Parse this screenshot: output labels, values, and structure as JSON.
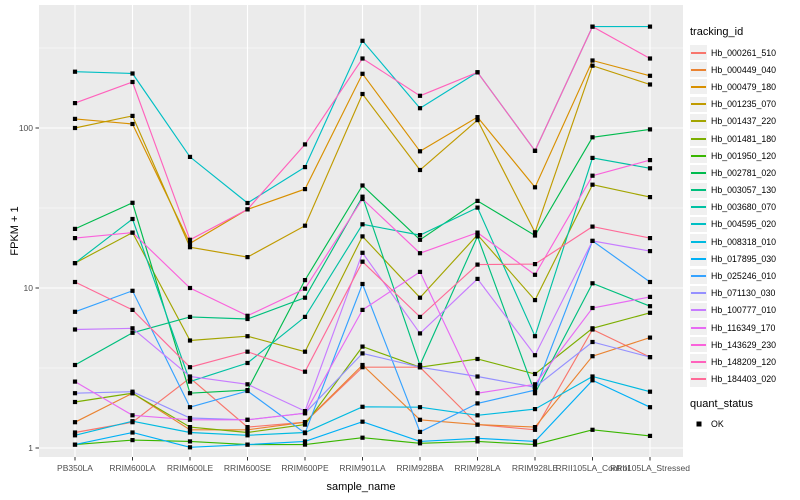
{
  "y_axis": {
    "label": "FPKM + 1",
    "tick_labels": [
      "100",
      "10",
      "1"
    ]
  },
  "x_axis": {
    "label": "sample_name"
  },
  "legend": {
    "tracking_title": "tracking_id",
    "quant_title": "quant_status",
    "quant_ok_label": "OK"
  },
  "chart_data": {
    "type": "line",
    "y_scale": "log10",
    "ylabel": "FPKM + 1",
    "xlabel": "sample_name",
    "y_ticks": [
      1,
      10,
      100
    ],
    "y_minor_ticks": [
      3.162,
      31.62,
      316.2
    ],
    "grid": "on",
    "legend_position": "right",
    "panel_background": "#EBEBEB",
    "grid_color": "#FFFFFF",
    "point_color": "#000000",
    "categories": [
      "PB350LA",
      "RRIM600LA",
      "RRIM600LE",
      "RRIM600SE",
      "RRIM600PE",
      "RRIM901LA",
      "RRIM928BA",
      "RRIM928LA",
      "RRIM928LE",
      "RRII105LA_Control",
      "RRII105LA_Stressed"
    ],
    "series": [
      {
        "name": "Hb_000261_510",
        "color": "#F8766D",
        "values": [
          1.25,
          1.45,
          2.74,
          1.35,
          1.45,
          3.2,
          3.2,
          1.4,
          1.3,
          5.5,
          3.7
        ]
      },
      {
        "name": "Hb_000449_040",
        "color": "#EA8331",
        "values": [
          1.45,
          2.2,
          1.3,
          1.3,
          1.45,
          3.3,
          1.5,
          1.4,
          1.35,
          3.75,
          4.9
        ]
      },
      {
        "name": "Hb_000479_180",
        "color": "#D89000",
        "values": [
          114,
          106,
          19,
          31,
          41.5,
          218,
          71.5,
          117,
          42.6,
          264,
          212
        ]
      },
      {
        "name": "Hb_001235_070",
        "color": "#C09B00",
        "values": [
          100,
          119,
          18,
          15.6,
          24.5,
          163,
          54.6,
          112,
          22.3,
          245,
          187
        ]
      },
      {
        "name": "Hb_001437_220",
        "color": "#A3A500",
        "values": [
          14.3,
          22.2,
          4.7,
          5.0,
          4.0,
          21,
          8.7,
          21.5,
          8.4,
          44.2,
          37
        ]
      },
      {
        "name": "Hb_001481_180",
        "color": "#7CAE00",
        "values": [
          1.94,
          2.2,
          1.35,
          1.25,
          1.4,
          4.3,
          3.2,
          3.6,
          2.9,
          5.6,
          7.0
        ]
      },
      {
        "name": "Hb_001950_120",
        "color": "#39B600",
        "values": [
          1.05,
          1.12,
          1.1,
          1.05,
          1.05,
          1.16,
          1.07,
          1.1,
          1.05,
          1.3,
          1.19
        ]
      },
      {
        "name": "Hb_002781_020",
        "color": "#00BB4E",
        "values": [
          23.4,
          34.1,
          2.2,
          2.3,
          11.2,
          43.7,
          20,
          35,
          21.3,
          87.5,
          98
        ]
      },
      {
        "name": "Hb_003057_130",
        "color": "#00BF7D",
        "values": [
          3.3,
          5.25,
          6.6,
          6.4,
          8.7,
          37.2,
          3.3,
          21,
          2.2,
          10.7,
          7.7
        ]
      },
      {
        "name": "Hb_003680_070",
        "color": "#00C1A3",
        "values": [
          14.3,
          27,
          2.6,
          3.4,
          6.6,
          25,
          21.4,
          31.8,
          5.0,
          65,
          56
        ]
      },
      {
        "name": "Hb_004595_020",
        "color": "#00BFC4",
        "values": [
          225,
          219,
          66,
          34,
          57,
          351,
          133,
          223,
          72,
          430,
          430
        ]
      },
      {
        "name": "Hb_008318_010",
        "color": "#00BAE0",
        "values": [
          1.2,
          1.47,
          1.25,
          1.2,
          1.25,
          1.81,
          1.8,
          1.6,
          1.75,
          2.8,
          2.25
        ]
      },
      {
        "name": "Hb_017895_030",
        "color": "#00B0F6",
        "values": [
          1.05,
          1.25,
          1.01,
          1.05,
          1.1,
          1.46,
          1.1,
          1.15,
          1.1,
          2.65,
          1.8
        ]
      },
      {
        "name": "Hb_025246_010",
        "color": "#35A2FF",
        "values": [
          7.1,
          9.6,
          1.8,
          2.27,
          1.24,
          10.6,
          1.26,
          1.9,
          2.3,
          19.7,
          10.9
        ]
      },
      {
        "name": "Hb_071130_030",
        "color": "#9590FF",
        "values": [
          2.2,
          2.25,
          1.54,
          1.5,
          1.65,
          3.9,
          3.2,
          2.8,
          2.4,
          4.6,
          3.7
        ]
      },
      {
        "name": "Hb_100777_010",
        "color": "#C77CFF",
        "values": [
          5.5,
          5.6,
          2.8,
          2.5,
          1.7,
          16.6,
          5.2,
          11.4,
          3.8,
          19.7,
          17
        ]
      },
      {
        "name": "Hb_116349_170",
        "color": "#E76BF3",
        "values": [
          2.6,
          1.6,
          1.5,
          1.5,
          1.65,
          7.3,
          12.6,
          2.2,
          2.5,
          7.5,
          8.8
        ]
      },
      {
        "name": "Hb_143629_230",
        "color": "#FA62DB",
        "values": [
          20.5,
          22.2,
          10,
          6.7,
          9.9,
          36,
          16.5,
          22.2,
          12.1,
          50.3,
          63
        ]
      },
      {
        "name": "Hb_148209_120",
        "color": "#FF62BC",
        "values": [
          143,
          194,
          20,
          31,
          79,
          272,
          159,
          223,
          72,
          430,
          272
        ]
      },
      {
        "name": "Hb_184403_020",
        "color": "#FF6A98",
        "values": [
          10.9,
          7.3,
          3.2,
          4.0,
          3.0,
          14.6,
          6.6,
          14,
          14.1,
          24.2,
          20.5
        ]
      }
    ],
    "quant_status": {
      "label": "OK",
      "marker": "black-square"
    }
  }
}
